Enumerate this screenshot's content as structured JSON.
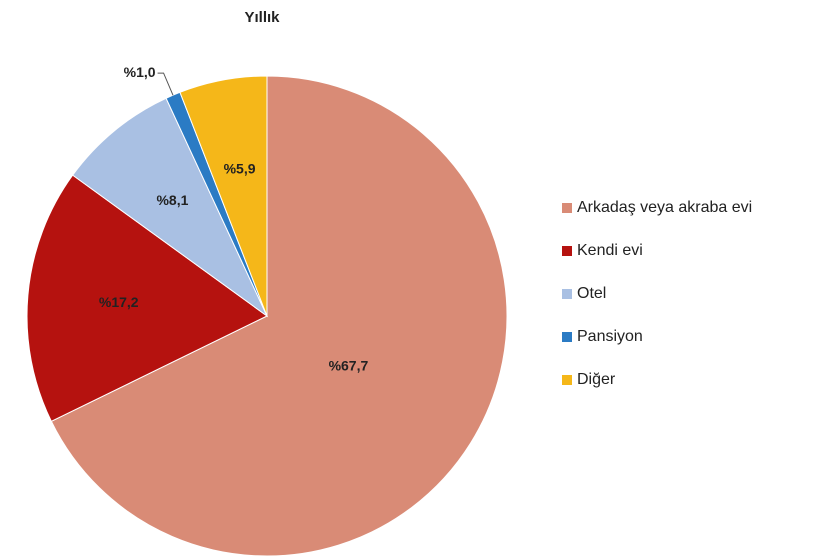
{
  "chart_data": {
    "type": "pie",
    "title": "Yıllık",
    "categories": [
      "Arkadaş veya akraba evi",
      "Kendi evi",
      "Otel",
      "Pansiyon",
      "Diğer"
    ],
    "values": [
      67.7,
      17.2,
      8.1,
      1.0,
      5.9
    ],
    "value_labels": [
      "%67,7",
      "%17,2",
      "%8,1",
      "%1,0",
      "%5,9"
    ],
    "colors": [
      "#d98b76",
      "#b5120f",
      "#a9c0e3",
      "#2b7bc4",
      "#f5b719"
    ],
    "legend": "right"
  }
}
